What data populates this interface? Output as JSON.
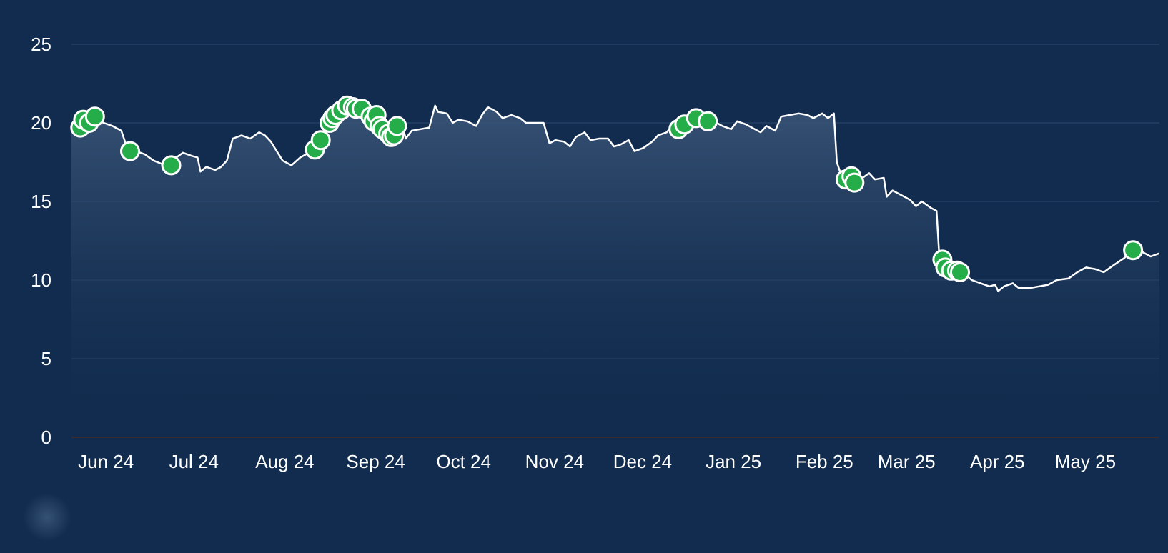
{
  "chart_data": {
    "type": "line",
    "title": "",
    "xlabel": "",
    "ylabel": "",
    "ylim": [
      0,
      25
    ],
    "y_ticks": [
      "0",
      "5",
      "10",
      "15",
      "20",
      "25"
    ],
    "x_range": [
      "2024-05-30",
      "2025-06-05"
    ],
    "x_ticks": [
      {
        "label": "Jun 24",
        "date": "2024-06-01"
      },
      {
        "label": "Jul 24",
        "date": "2024-07-01"
      },
      {
        "label": "Aug 24",
        "date": "2024-08-01"
      },
      {
        "label": "Sep 24",
        "date": "2024-09-01"
      },
      {
        "label": "Oct 24",
        "date": "2024-10-01"
      },
      {
        "label": "Nov 24",
        "date": "2024-11-01"
      },
      {
        "label": "Dec 24",
        "date": "2024-12-01"
      },
      {
        "label": "Jan 25",
        "date": "2025-01-01"
      },
      {
        "label": "Feb 25",
        "date": "2025-02-01"
      },
      {
        "label": "Mar 25",
        "date": "2025-03-01"
      },
      {
        "label": "Apr 25",
        "date": "2025-04-01"
      },
      {
        "label": "May 25",
        "date": "2025-05-01"
      }
    ],
    "grid": true,
    "legend": "none",
    "colors": {
      "background": "#112c4e",
      "line": "#ffffff",
      "marker": "#25ad4a",
      "grid": "#223e63",
      "area_top": "#3b5678"
    },
    "series": [
      {
        "values": [
          [
            "2024-05-30",
            19.7
          ],
          [
            "2024-06-02",
            19.9
          ],
          [
            "2024-06-04",
            20.1
          ],
          [
            "2024-06-07",
            20.2
          ],
          [
            "2024-06-10",
            20.0
          ],
          [
            "2024-06-13",
            19.8
          ],
          [
            "2024-06-16",
            19.5
          ],
          [
            "2024-06-18",
            18.4
          ],
          [
            "2024-06-21",
            18.2
          ],
          [
            "2024-06-24",
            18.0
          ],
          [
            "2024-06-27",
            17.6
          ],
          [
            "2024-07-01",
            17.3
          ],
          [
            "2024-07-04",
            17.7
          ],
          [
            "2024-07-07",
            18.1
          ],
          [
            "2024-07-10",
            17.9
          ],
          [
            "2024-07-12",
            17.8
          ],
          [
            "2024-07-13",
            16.9
          ],
          [
            "2024-07-15",
            17.2
          ],
          [
            "2024-07-18",
            17.0
          ],
          [
            "2024-07-20",
            17.2
          ],
          [
            "2024-07-22",
            17.6
          ],
          [
            "2024-07-24",
            19.0
          ],
          [
            "2024-07-27",
            19.2
          ],
          [
            "2024-07-30",
            19.0
          ],
          [
            "2024-08-02",
            19.4
          ],
          [
            "2024-08-04",
            19.2
          ],
          [
            "2024-08-06",
            18.8
          ],
          [
            "2024-08-08",
            18.2
          ],
          [
            "2024-08-10",
            17.6
          ],
          [
            "2024-08-13",
            17.3
          ],
          [
            "2024-08-16",
            17.8
          ],
          [
            "2024-08-19",
            18.1
          ],
          [
            "2024-08-22",
            18.3
          ],
          [
            "2024-08-24",
            19.0
          ],
          [
            "2024-08-26",
            20.0
          ],
          [
            "2024-08-28",
            20.4
          ],
          [
            "2024-08-30",
            20.7
          ],
          [
            "2024-09-01",
            21.0
          ],
          [
            "2024-09-03",
            20.9
          ],
          [
            "2024-09-05",
            20.7
          ],
          [
            "2024-09-08",
            20.4
          ],
          [
            "2024-09-10",
            20.2
          ],
          [
            "2024-09-12",
            19.8
          ],
          [
            "2024-09-14",
            19.4
          ],
          [
            "2024-09-16",
            19.1
          ],
          [
            "2024-09-18",
            19.4
          ],
          [
            "2024-09-20",
            19.7
          ],
          [
            "2024-09-21",
            19.0
          ],
          [
            "2024-09-23",
            19.5
          ],
          [
            "2024-09-26",
            19.6
          ],
          [
            "2024-09-29",
            19.7
          ],
          [
            "2024-10-01",
            21.1
          ],
          [
            "2024-10-02",
            20.7
          ],
          [
            "2024-10-05",
            20.6
          ],
          [
            "2024-10-07",
            20.0
          ],
          [
            "2024-10-09",
            20.2
          ],
          [
            "2024-10-12",
            20.1
          ],
          [
            "2024-10-15",
            19.8
          ],
          [
            "2024-10-17",
            20.5
          ],
          [
            "2024-10-19",
            21.0
          ],
          [
            "2024-10-22",
            20.7
          ],
          [
            "2024-10-24",
            20.3
          ],
          [
            "2024-10-27",
            20.5
          ],
          [
            "2024-10-30",
            20.3
          ],
          [
            "2024-11-01",
            20.0
          ],
          [
            "2024-11-04",
            20.0
          ],
          [
            "2024-11-07",
            20.0
          ],
          [
            "2024-11-09",
            18.7
          ],
          [
            "2024-11-11",
            18.9
          ],
          [
            "2024-11-14",
            18.8
          ],
          [
            "2024-11-16",
            18.5
          ],
          [
            "2024-11-18",
            19.1
          ],
          [
            "2024-11-21",
            19.4
          ],
          [
            "2024-11-23",
            18.9
          ],
          [
            "2024-11-26",
            19.0
          ],
          [
            "2024-11-29",
            19.0
          ],
          [
            "2024-12-01",
            18.5
          ],
          [
            "2024-12-03",
            18.6
          ],
          [
            "2024-12-06",
            18.9
          ],
          [
            "2024-12-08",
            18.2
          ],
          [
            "2024-12-11",
            18.4
          ],
          [
            "2024-12-14",
            18.8
          ],
          [
            "2024-12-16",
            19.2
          ],
          [
            "2024-12-19",
            19.4
          ],
          [
            "2024-12-21",
            19.9
          ],
          [
            "2024-12-24",
            19.9
          ],
          [
            "2024-12-27",
            19.7
          ],
          [
            "2024-12-30",
            20.1
          ],
          [
            "2025-01-02",
            20.3
          ],
          [
            "2025-01-05",
            20.0
          ],
          [
            "2025-01-07",
            19.8
          ],
          [
            "2025-01-10",
            19.6
          ],
          [
            "2025-01-12",
            20.1
          ],
          [
            "2025-01-15",
            19.9
          ],
          [
            "2025-01-18",
            19.6
          ],
          [
            "2025-01-20",
            19.4
          ],
          [
            "2025-01-22",
            19.8
          ],
          [
            "2025-01-25",
            19.5
          ],
          [
            "2025-01-27",
            20.4
          ],
          [
            "2025-01-30",
            20.5
          ],
          [
            "2025-02-02",
            20.6
          ],
          [
            "2025-02-05",
            20.5
          ],
          [
            "2025-02-07",
            20.3
          ],
          [
            "2025-02-10",
            20.6
          ],
          [
            "2025-02-12",
            20.3
          ],
          [
            "2025-02-14",
            20.6
          ],
          [
            "2025-02-15",
            17.5
          ],
          [
            "2025-02-17",
            16.4
          ],
          [
            "2025-02-19",
            16.6
          ],
          [
            "2025-02-21",
            16.2
          ],
          [
            "2025-02-23",
            16.4
          ],
          [
            "2025-02-26",
            16.8
          ],
          [
            "2025-02-28",
            16.4
          ],
          [
            "2025-03-03",
            16.5
          ],
          [
            "2025-03-04",
            15.3
          ],
          [
            "2025-03-06",
            15.7
          ],
          [
            "2025-03-09",
            15.4
          ],
          [
            "2025-03-12",
            15.1
          ],
          [
            "2025-03-14",
            14.7
          ],
          [
            "2025-03-16",
            15.0
          ],
          [
            "2025-03-19",
            14.6
          ],
          [
            "2025-03-21",
            14.4
          ],
          [
            "2025-03-22",
            11.3
          ],
          [
            "2025-03-24",
            11.0
          ],
          [
            "2025-03-27",
            10.7
          ],
          [
            "2025-03-30",
            10.5
          ],
          [
            "2025-04-02",
            10.0
          ],
          [
            "2025-04-05",
            9.8
          ],
          [
            "2025-04-08",
            9.6
          ],
          [
            "2025-04-10",
            9.7
          ],
          [
            "2025-04-11",
            9.3
          ],
          [
            "2025-04-13",
            9.6
          ],
          [
            "2025-04-16",
            9.8
          ],
          [
            "2025-04-18",
            9.5
          ],
          [
            "2025-04-22",
            9.5
          ],
          [
            "2025-04-25",
            9.6
          ],
          [
            "2025-04-28",
            9.7
          ],
          [
            "2025-05-01",
            10.0
          ],
          [
            "2025-05-05",
            10.1
          ],
          [
            "2025-05-08",
            10.5
          ],
          [
            "2025-05-11",
            10.8
          ],
          [
            "2025-05-14",
            10.7
          ],
          [
            "2025-05-17",
            10.5
          ],
          [
            "2025-05-20",
            10.9
          ],
          [
            "2025-05-24",
            11.4
          ],
          [
            "2025-05-27",
            11.9
          ],
          [
            "2025-05-30",
            11.8
          ],
          [
            "2025-06-02",
            11.5
          ],
          [
            "2025-06-05",
            11.7
          ]
        ],
        "markers": [
          [
            "2024-06-02",
            19.7
          ],
          [
            "2024-06-03",
            20.2
          ],
          [
            "2024-06-05",
            20.0
          ],
          [
            "2024-06-07",
            20.4
          ],
          [
            "2024-06-19",
            18.2
          ],
          [
            "2024-07-03",
            17.3
          ],
          [
            "2024-08-21",
            18.3
          ],
          [
            "2024-08-23",
            18.9
          ],
          [
            "2024-08-26",
            20.0
          ],
          [
            "2024-08-27",
            20.3
          ],
          [
            "2024-08-28",
            20.5
          ],
          [
            "2024-08-30",
            20.8
          ],
          [
            "2024-09-01",
            21.1
          ],
          [
            "2024-09-03",
            21.0
          ],
          [
            "2024-09-04",
            20.9
          ],
          [
            "2024-09-06",
            20.9
          ],
          [
            "2024-09-09",
            20.4
          ],
          [
            "2024-09-10",
            20.1
          ],
          [
            "2024-09-11",
            20.5
          ],
          [
            "2024-09-12",
            19.8
          ],
          [
            "2024-09-13",
            19.6
          ],
          [
            "2024-09-15",
            19.3
          ],
          [
            "2024-09-16",
            19.1
          ],
          [
            "2024-09-17",
            19.2
          ],
          [
            "2024-09-18",
            19.8
          ],
          [
            "2024-12-23",
            19.6
          ],
          [
            "2024-12-25",
            19.9
          ],
          [
            "2024-12-29",
            20.3
          ],
          [
            "2025-01-02",
            20.1
          ],
          [
            "2025-02-18",
            16.4
          ],
          [
            "2025-02-20",
            16.6
          ],
          [
            "2025-02-21",
            16.2
          ],
          [
            "2025-03-23",
            11.3
          ],
          [
            "2025-03-24",
            10.8
          ],
          [
            "2025-03-26",
            10.6
          ],
          [
            "2025-03-28",
            10.6
          ],
          [
            "2025-03-29",
            10.5
          ],
          [
            "2025-05-27",
            11.9
          ]
        ]
      }
    ]
  }
}
